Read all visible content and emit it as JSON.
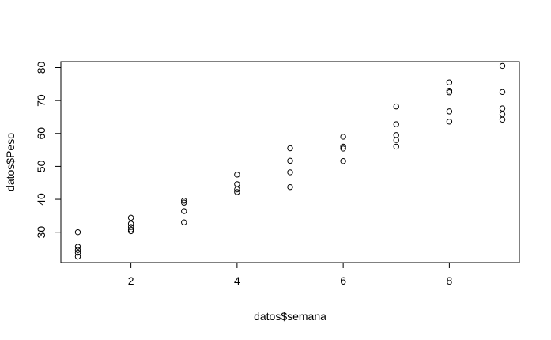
{
  "chart_data": {
    "type": "scatter",
    "title": "",
    "xlabel": "datos$semana",
    "ylabel": "datos$Peso",
    "xlim": [
      0.68,
      9.32
    ],
    "ylim": [
      20.8,
      81.8
    ],
    "x_ticks": [
      2,
      4,
      6,
      8
    ],
    "y_ticks": [
      30,
      40,
      50,
      60,
      70,
      80
    ],
    "grid": false,
    "legend": "none",
    "points": [
      {
        "x": 1,
        "y": 30.0
      },
      {
        "x": 1,
        "y": 25.6
      },
      {
        "x": 1,
        "y": 24.6
      },
      {
        "x": 1,
        "y": 23.8
      },
      {
        "x": 1,
        "y": 22.6
      },
      {
        "x": 2,
        "y": 34.4
      },
      {
        "x": 2,
        "y": 32.6
      },
      {
        "x": 2,
        "y": 31.6
      },
      {
        "x": 2,
        "y": 30.8
      },
      {
        "x": 2,
        "y": 30.3
      },
      {
        "x": 3,
        "y": 39.6
      },
      {
        "x": 3,
        "y": 39.0
      },
      {
        "x": 3,
        "y": 36.4
      },
      {
        "x": 3,
        "y": 33.0
      },
      {
        "x": 4,
        "y": 47.5
      },
      {
        "x": 4,
        "y": 44.6
      },
      {
        "x": 4,
        "y": 43.0
      },
      {
        "x": 4,
        "y": 42.2
      },
      {
        "x": 5,
        "y": 55.5
      },
      {
        "x": 5,
        "y": 51.7
      },
      {
        "x": 5,
        "y": 48.2
      },
      {
        "x": 5,
        "y": 43.7
      },
      {
        "x": 6,
        "y": 59.0
      },
      {
        "x": 6,
        "y": 56.0
      },
      {
        "x": 6,
        "y": 55.4
      },
      {
        "x": 6,
        "y": 51.6
      },
      {
        "x": 7,
        "y": 68.2
      },
      {
        "x": 7,
        "y": 62.8
      },
      {
        "x": 7,
        "y": 59.5
      },
      {
        "x": 7,
        "y": 58.0
      },
      {
        "x": 7,
        "y": 56.0
      },
      {
        "x": 8,
        "y": 75.5
      },
      {
        "x": 8,
        "y": 73.0
      },
      {
        "x": 8,
        "y": 72.5
      },
      {
        "x": 8,
        "y": 66.7
      },
      {
        "x": 8,
        "y": 63.6
      },
      {
        "x": 9,
        "y": 80.5
      },
      {
        "x": 9,
        "y": 72.6
      },
      {
        "x": 9,
        "y": 67.6
      },
      {
        "x": 9,
        "y": 65.8
      },
      {
        "x": 9,
        "y": 64.2
      }
    ]
  }
}
